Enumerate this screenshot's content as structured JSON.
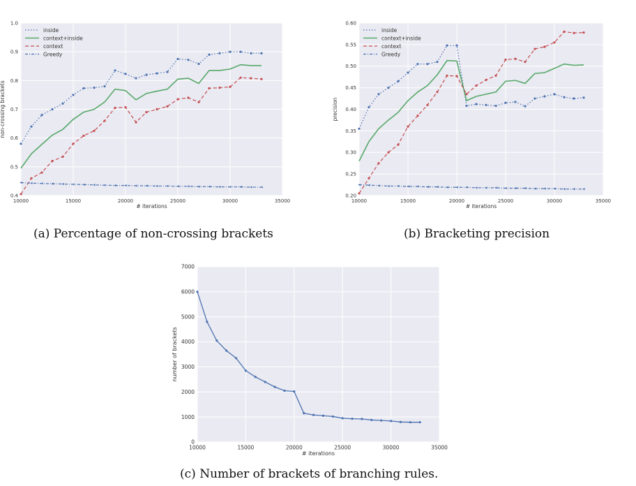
{
  "captions": {
    "a": "(a) Percentage of non-crossing brackets",
    "b": "(b) Bracketing precision",
    "c": "(c) Number of brackets of branching rules."
  },
  "colors": {
    "inside": "#4c72b0",
    "context_inside": "#55a868",
    "context": "#c44e52",
    "greedy": "#4c72b0",
    "panel_bg": "#eaeaf2"
  },
  "chart_data": [
    {
      "type": "line",
      "ylabel": "non-crossing brackets",
      "xlabel": "# iterations",
      "xlim": [
        10000,
        35000
      ],
      "ylim": [
        0.4,
        1.0
      ],
      "xticks": [
        "10000",
        "15000",
        "20000",
        "25000",
        "30000",
        "35000"
      ],
      "yticks": [
        "0.4",
        "0.5",
        "0.6",
        "0.7",
        "0.8",
        "0.9",
        "1.0"
      ],
      "legend": "top-left",
      "grid": true,
      "x": [
        10000,
        11000,
        12000,
        13000,
        14000,
        15000,
        16000,
        17000,
        18000,
        19000,
        20000,
        21000,
        22000,
        23000,
        24000,
        25000,
        26000,
        27000,
        28000,
        29000,
        30000,
        31000,
        32000,
        33000
      ],
      "series": [
        {
          "name": "inside",
          "values": [
            0.58,
            0.64,
            0.68,
            0.7,
            0.72,
            0.75,
            0.773,
            0.775,
            0.78,
            0.835,
            0.823,
            0.808,
            0.82,
            0.825,
            0.83,
            0.875,
            0.872,
            0.858,
            0.89,
            0.895,
            0.9,
            0.9,
            0.895,
            0.895
          ]
        },
        {
          "name": "context+inside",
          "values": [
            0.495,
            0.545,
            0.578,
            0.61,
            0.63,
            0.665,
            0.69,
            0.7,
            0.725,
            0.77,
            0.765,
            0.733,
            0.755,
            0.763,
            0.77,
            0.805,
            0.808,
            0.79,
            0.835,
            0.835,
            0.84,
            0.855,
            0.852,
            0.852
          ]
        },
        {
          "name": "context",
          "values": [
            0.405,
            0.46,
            0.48,
            0.52,
            0.535,
            0.58,
            0.608,
            0.625,
            0.66,
            0.705,
            0.707,
            0.655,
            0.69,
            0.7,
            0.71,
            0.735,
            0.74,
            0.725,
            0.773,
            0.775,
            0.778,
            0.81,
            0.808,
            0.805
          ]
        },
        {
          "name": "Greedy",
          "values": [
            0.445,
            0.443,
            0.442,
            0.441,
            0.44,
            0.439,
            0.438,
            0.437,
            0.436,
            0.435,
            0.435,
            0.434,
            0.434,
            0.433,
            0.433,
            0.432,
            0.432,
            0.431,
            0.431,
            0.43,
            0.43,
            0.43,
            0.429,
            0.429
          ]
        }
      ]
    },
    {
      "type": "line",
      "ylabel": "precision",
      "xlabel": "# iterations",
      "xlim": [
        10000,
        35000
      ],
      "ylim": [
        0.2,
        0.6
      ],
      "xticks": [
        "10000",
        "15000",
        "20000",
        "25000",
        "30000",
        "35000"
      ],
      "yticks": [
        "0.20",
        "0.25",
        "0.30",
        "0.35",
        "0.40",
        "0.45",
        "0.50",
        "0.55",
        "0.60"
      ],
      "legend": "top-left",
      "grid": true,
      "x": [
        10000,
        11000,
        12000,
        13000,
        14000,
        15000,
        16000,
        17000,
        18000,
        19000,
        20000,
        21000,
        22000,
        23000,
        24000,
        25000,
        26000,
        27000,
        28000,
        29000,
        30000,
        31000,
        32000,
        33000
      ],
      "series": [
        {
          "name": "inside",
          "values": [
            0.355,
            0.405,
            0.435,
            0.45,
            0.465,
            0.485,
            0.505,
            0.505,
            0.51,
            0.548,
            0.548,
            0.408,
            0.412,
            0.41,
            0.408,
            0.415,
            0.417,
            0.407,
            0.425,
            0.43,
            0.435,
            0.428,
            0.425,
            0.427
          ]
        },
        {
          "name": "context+inside",
          "values": [
            0.28,
            0.325,
            0.355,
            0.375,
            0.393,
            0.42,
            0.44,
            0.455,
            0.48,
            0.513,
            0.512,
            0.42,
            0.43,
            0.435,
            0.44,
            0.465,
            0.467,
            0.46,
            0.483,
            0.485,
            0.495,
            0.505,
            0.502,
            0.503
          ]
        },
        {
          "name": "context",
          "values": [
            0.205,
            0.24,
            0.275,
            0.3,
            0.318,
            0.36,
            0.385,
            0.41,
            0.44,
            0.478,
            0.477,
            0.435,
            0.455,
            0.468,
            0.478,
            0.515,
            0.517,
            0.51,
            0.54,
            0.545,
            0.555,
            0.58,
            0.577,
            0.578
          ]
        },
        {
          "name": "Greedy",
          "values": [
            0.225,
            0.224,
            0.223,
            0.222,
            0.222,
            0.221,
            0.221,
            0.22,
            0.22,
            0.219,
            0.219,
            0.219,
            0.218,
            0.218,
            0.218,
            0.217,
            0.217,
            0.217,
            0.216,
            0.216,
            0.216,
            0.215,
            0.215,
            0.215
          ]
        }
      ]
    },
    {
      "type": "line",
      "ylabel": "number of brackets",
      "xlabel": "# iterations",
      "xlim": [
        10000,
        35000
      ],
      "ylim": [
        0,
        7000
      ],
      "xticks": [
        "10000",
        "15000",
        "20000",
        "25000",
        "30000",
        "35000"
      ],
      "yticks": [
        "0",
        "1000",
        "2000",
        "3000",
        "4000",
        "5000",
        "6000",
        "7000"
      ],
      "grid": true,
      "x": [
        10000,
        11000,
        12000,
        13000,
        14000,
        15000,
        16000,
        17000,
        18000,
        19000,
        20000,
        21000,
        22000,
        23000,
        24000,
        25000,
        26000,
        27000,
        28000,
        29000,
        30000,
        31000,
        32000,
        33000
      ],
      "series": [
        {
          "values": [
            6000,
            4800,
            4050,
            3650,
            3350,
            2850,
            2600,
            2400,
            2200,
            2050,
            2020,
            1150,
            1080,
            1050,
            1020,
            950,
            930,
            920,
            880,
            860,
            840,
            800,
            790,
            790
          ]
        }
      ]
    }
  ]
}
